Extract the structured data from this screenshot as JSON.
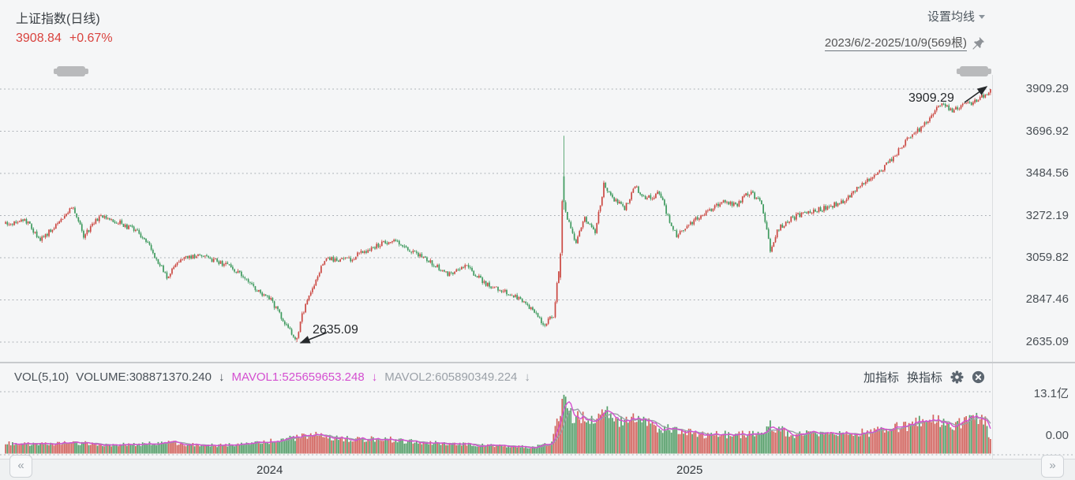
{
  "app": {
    "title": "上证指数(日线)",
    "price": "3908.84",
    "change_pct": "+0.67%",
    "ma_settings_label": "设置均线",
    "date_range_label": "2023/6/2-2025/10/9(569根)",
    "add_indicator_label": "加指标",
    "switch_indicator_label": "换指标",
    "nav_prev": "«",
    "nav_next": "»"
  },
  "indicator_bar": {
    "vol_label": "VOL(5,10)",
    "volume_text": "VOLUME:308871370.240",
    "mavol1_text": "MAVOL1:525659653.248",
    "mavol2_text": "MAVOL2:605890349.224",
    "down_arrow": "↓"
  },
  "colors": {
    "up": "#cb4842",
    "down": "#3d995d",
    "vol_up": "#d2625c",
    "vol_down": "#549e68",
    "mavol1": "#d44fd0",
    "mavol2": "#9aa0a6",
    "price": "#d9433e",
    "grid": "#a8adb3"
  },
  "chart_data": {
    "type": "candlestick",
    "title": "上证指数(日线)",
    "period": "日线",
    "visible_range": "2023/6/2 - 2025/10/9",
    "bars": 569,
    "last_close": 3908.84,
    "change_pct": "+0.67%",
    "y_axis": {
      "max": 3909.29,
      "min": 2635.09,
      "ticks": [
        3909.29,
        3696.92,
        3484.56,
        3272.19,
        3059.82,
        2847.46,
        2635.09
      ]
    },
    "x_axis": {
      "year_labels": [
        "2024",
        "2025"
      ]
    },
    "annotations": [
      {
        "text": "2635.09",
        "type": "low"
      },
      {
        "text": "3909.29",
        "type": "high"
      }
    ],
    "key_points": {
      "period_low": {
        "value": 2635.09,
        "bar_index": 168
      },
      "spike_high": {
        "value": 3674,
        "bar_index": 322
      },
      "period_high": {
        "value": 3909.29,
        "bar_index": 568
      }
    },
    "price_path_anchors": [
      [
        0,
        3230
      ],
      [
        11,
        3255
      ],
      [
        20,
        3150
      ],
      [
        29,
        3220
      ],
      [
        39,
        3318
      ],
      [
        45,
        3170
      ],
      [
        55,
        3275
      ],
      [
        66,
        3235
      ],
      [
        75,
        3195
      ],
      [
        82,
        3130
      ],
      [
        93,
        2965
      ],
      [
        102,
        3060
      ],
      [
        114,
        3070
      ],
      [
        125,
        3030
      ],
      [
        134,
        2990
      ],
      [
        143,
        2915
      ],
      [
        153,
        2845
      ],
      [
        160,
        2745
      ],
      [
        168,
        2650
      ],
      [
        171,
        2770
      ],
      [
        177,
        2905
      ],
      [
        184,
        3055
      ],
      [
        198,
        3050
      ],
      [
        211,
        3110
      ],
      [
        223,
        3150
      ],
      [
        234,
        3095
      ],
      [
        245,
        3035
      ],
      [
        255,
        2975
      ],
      [
        266,
        3015
      ],
      [
        277,
        2925
      ],
      [
        289,
        2885
      ],
      [
        300,
        2835
      ],
      [
        310,
        2725
      ],
      [
        316,
        2765
      ],
      [
        319,
        3000
      ],
      [
        321,
        3330
      ],
      [
        322,
        3345
      ],
      [
        324,
        3260
      ],
      [
        329,
        3135
      ],
      [
        334,
        3255
      ],
      [
        340,
        3185
      ],
      [
        345,
        3425
      ],
      [
        351,
        3355
      ],
      [
        357,
        3305
      ],
      [
        363,
        3415
      ],
      [
        369,
        3355
      ],
      [
        377,
        3385
      ],
      [
        383,
        3245
      ],
      [
        387,
        3175
      ],
      [
        395,
        3235
      ],
      [
        404,
        3290
      ],
      [
        413,
        3340
      ],
      [
        422,
        3330
      ],
      [
        429,
        3390
      ],
      [
        436,
        3340
      ],
      [
        441,
        3095
      ],
      [
        445,
        3200
      ],
      [
        452,
        3250
      ],
      [
        461,
        3290
      ],
      [
        473,
        3310
      ],
      [
        484,
        3350
      ],
      [
        493,
        3420
      ],
      [
        502,
        3480
      ],
      [
        511,
        3555
      ],
      [
        520,
        3655
      ],
      [
        529,
        3720
      ],
      [
        536,
        3805
      ],
      [
        541,
        3845
      ],
      [
        545,
        3800
      ],
      [
        552,
        3822
      ],
      [
        558,
        3842
      ],
      [
        562,
        3868
      ],
      [
        566,
        3888
      ],
      [
        568,
        3908.84
      ]
    ],
    "volume_pane": {
      "label": "VOL(5,10)",
      "volume": 308871370.24,
      "mavol1": 525659653.248,
      "mavol2": 605890349.224,
      "y_max_label": "13.1亿",
      "y_min_label": "0.00",
      "y_max_value": 1310000000,
      "volume_anchors": [
        [
          0,
          0.16
        ],
        [
          20,
          0.15
        ],
        [
          40,
          0.17
        ],
        [
          60,
          0.14
        ],
        [
          80,
          0.15
        ],
        [
          93,
          0.18
        ],
        [
          105,
          0.14
        ],
        [
          120,
          0.13
        ],
        [
          140,
          0.15
        ],
        [
          155,
          0.2
        ],
        [
          168,
          0.26
        ],
        [
          175,
          0.3
        ],
        [
          184,
          0.27
        ],
        [
          200,
          0.22
        ],
        [
          215,
          0.24
        ],
        [
          230,
          0.2
        ],
        [
          245,
          0.17
        ],
        [
          260,
          0.15
        ],
        [
          275,
          0.13
        ],
        [
          290,
          0.12
        ],
        [
          305,
          0.1
        ],
        [
          315,
          0.18
        ],
        [
          319,
          0.55
        ],
        [
          322,
          0.93
        ],
        [
          325,
          0.6
        ],
        [
          330,
          0.55
        ],
        [
          335,
          0.62
        ],
        [
          340,
          0.52
        ],
        [
          345,
          0.66
        ],
        [
          350,
          0.55
        ],
        [
          357,
          0.48
        ],
        [
          365,
          0.55
        ],
        [
          372,
          0.45
        ],
        [
          380,
          0.4
        ],
        [
          390,
          0.34
        ],
        [
          400,
          0.3
        ],
        [
          410,
          0.32
        ],
        [
          420,
          0.3
        ],
        [
          430,
          0.32
        ],
        [
          436,
          0.28
        ],
        [
          441,
          0.44
        ],
        [
          448,
          0.36
        ],
        [
          455,
          0.3
        ],
        [
          465,
          0.31
        ],
        [
          475,
          0.3
        ],
        [
          485,
          0.32
        ],
        [
          495,
          0.33
        ],
        [
          505,
          0.36
        ],
        [
          515,
          0.42
        ],
        [
          525,
          0.48
        ],
        [
          535,
          0.55
        ],
        [
          541,
          0.52
        ],
        [
          548,
          0.45
        ],
        [
          555,
          0.5
        ],
        [
          560,
          0.55
        ],
        [
          565,
          0.48
        ],
        [
          568,
          0.24
        ]
      ]
    }
  }
}
